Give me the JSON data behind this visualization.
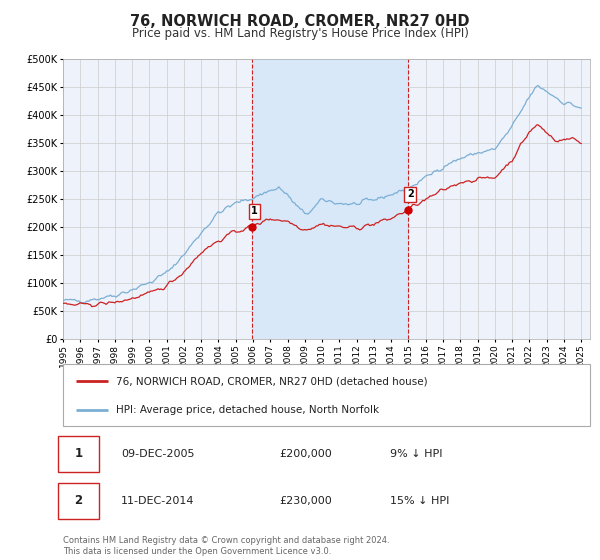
{
  "title": "76, NORWICH ROAD, CROMER, NR27 0HD",
  "subtitle": "Price paid vs. HM Land Registry's House Price Index (HPI)",
  "title_fontsize": 10.5,
  "subtitle_fontsize": 8.5,
  "ylim": [
    0,
    500000
  ],
  "yticks": [
    0,
    50000,
    100000,
    150000,
    200000,
    250000,
    300000,
    350000,
    400000,
    450000,
    500000
  ],
  "ytick_labels": [
    "£0",
    "£50K",
    "£100K",
    "£150K",
    "£200K",
    "£250K",
    "£300K",
    "£350K",
    "£400K",
    "£450K",
    "£500K"
  ],
  "xlim_start": 1995.0,
  "xlim_end": 2025.5,
  "xtick_years": [
    1995,
    1996,
    1997,
    1998,
    1999,
    2000,
    2001,
    2002,
    2003,
    2004,
    2005,
    2006,
    2007,
    2008,
    2009,
    2010,
    2011,
    2012,
    2013,
    2014,
    2015,
    2016,
    2017,
    2018,
    2019,
    2020,
    2021,
    2022,
    2023,
    2024,
    2025
  ],
  "hpi_color": "#7bafd4",
  "price_color": "#cc2222",
  "marker_color": "#cc0000",
  "bg_color": "#eef2fb",
  "grid_color": "#cccccc",
  "highlight_bg": "#d8e8f8",
  "vline_color": "#cc2222",
  "sale1_x": 2005.94,
  "sale1_y": 200000,
  "sale1_label": "1",
  "sale1_date": "09-DEC-2005",
  "sale1_price": "£200,000",
  "sale1_hpi": "9% ↓ HPI",
  "sale2_x": 2014.95,
  "sale2_y": 230000,
  "sale2_label": "2",
  "sale2_date": "11-DEC-2014",
  "sale2_price": "£230,000",
  "sale2_hpi": "15% ↓ HPI",
  "legend_line1": "76, NORWICH ROAD, CROMER, NR27 0HD (detached house)",
  "legend_line2": "HPI: Average price, detached house, North Norfolk",
  "footer": "Contains HM Land Registry data © Crown copyright and database right 2024.\nThis data is licensed under the Open Government Licence v3.0.",
  "footer_fontsize": 6.0
}
